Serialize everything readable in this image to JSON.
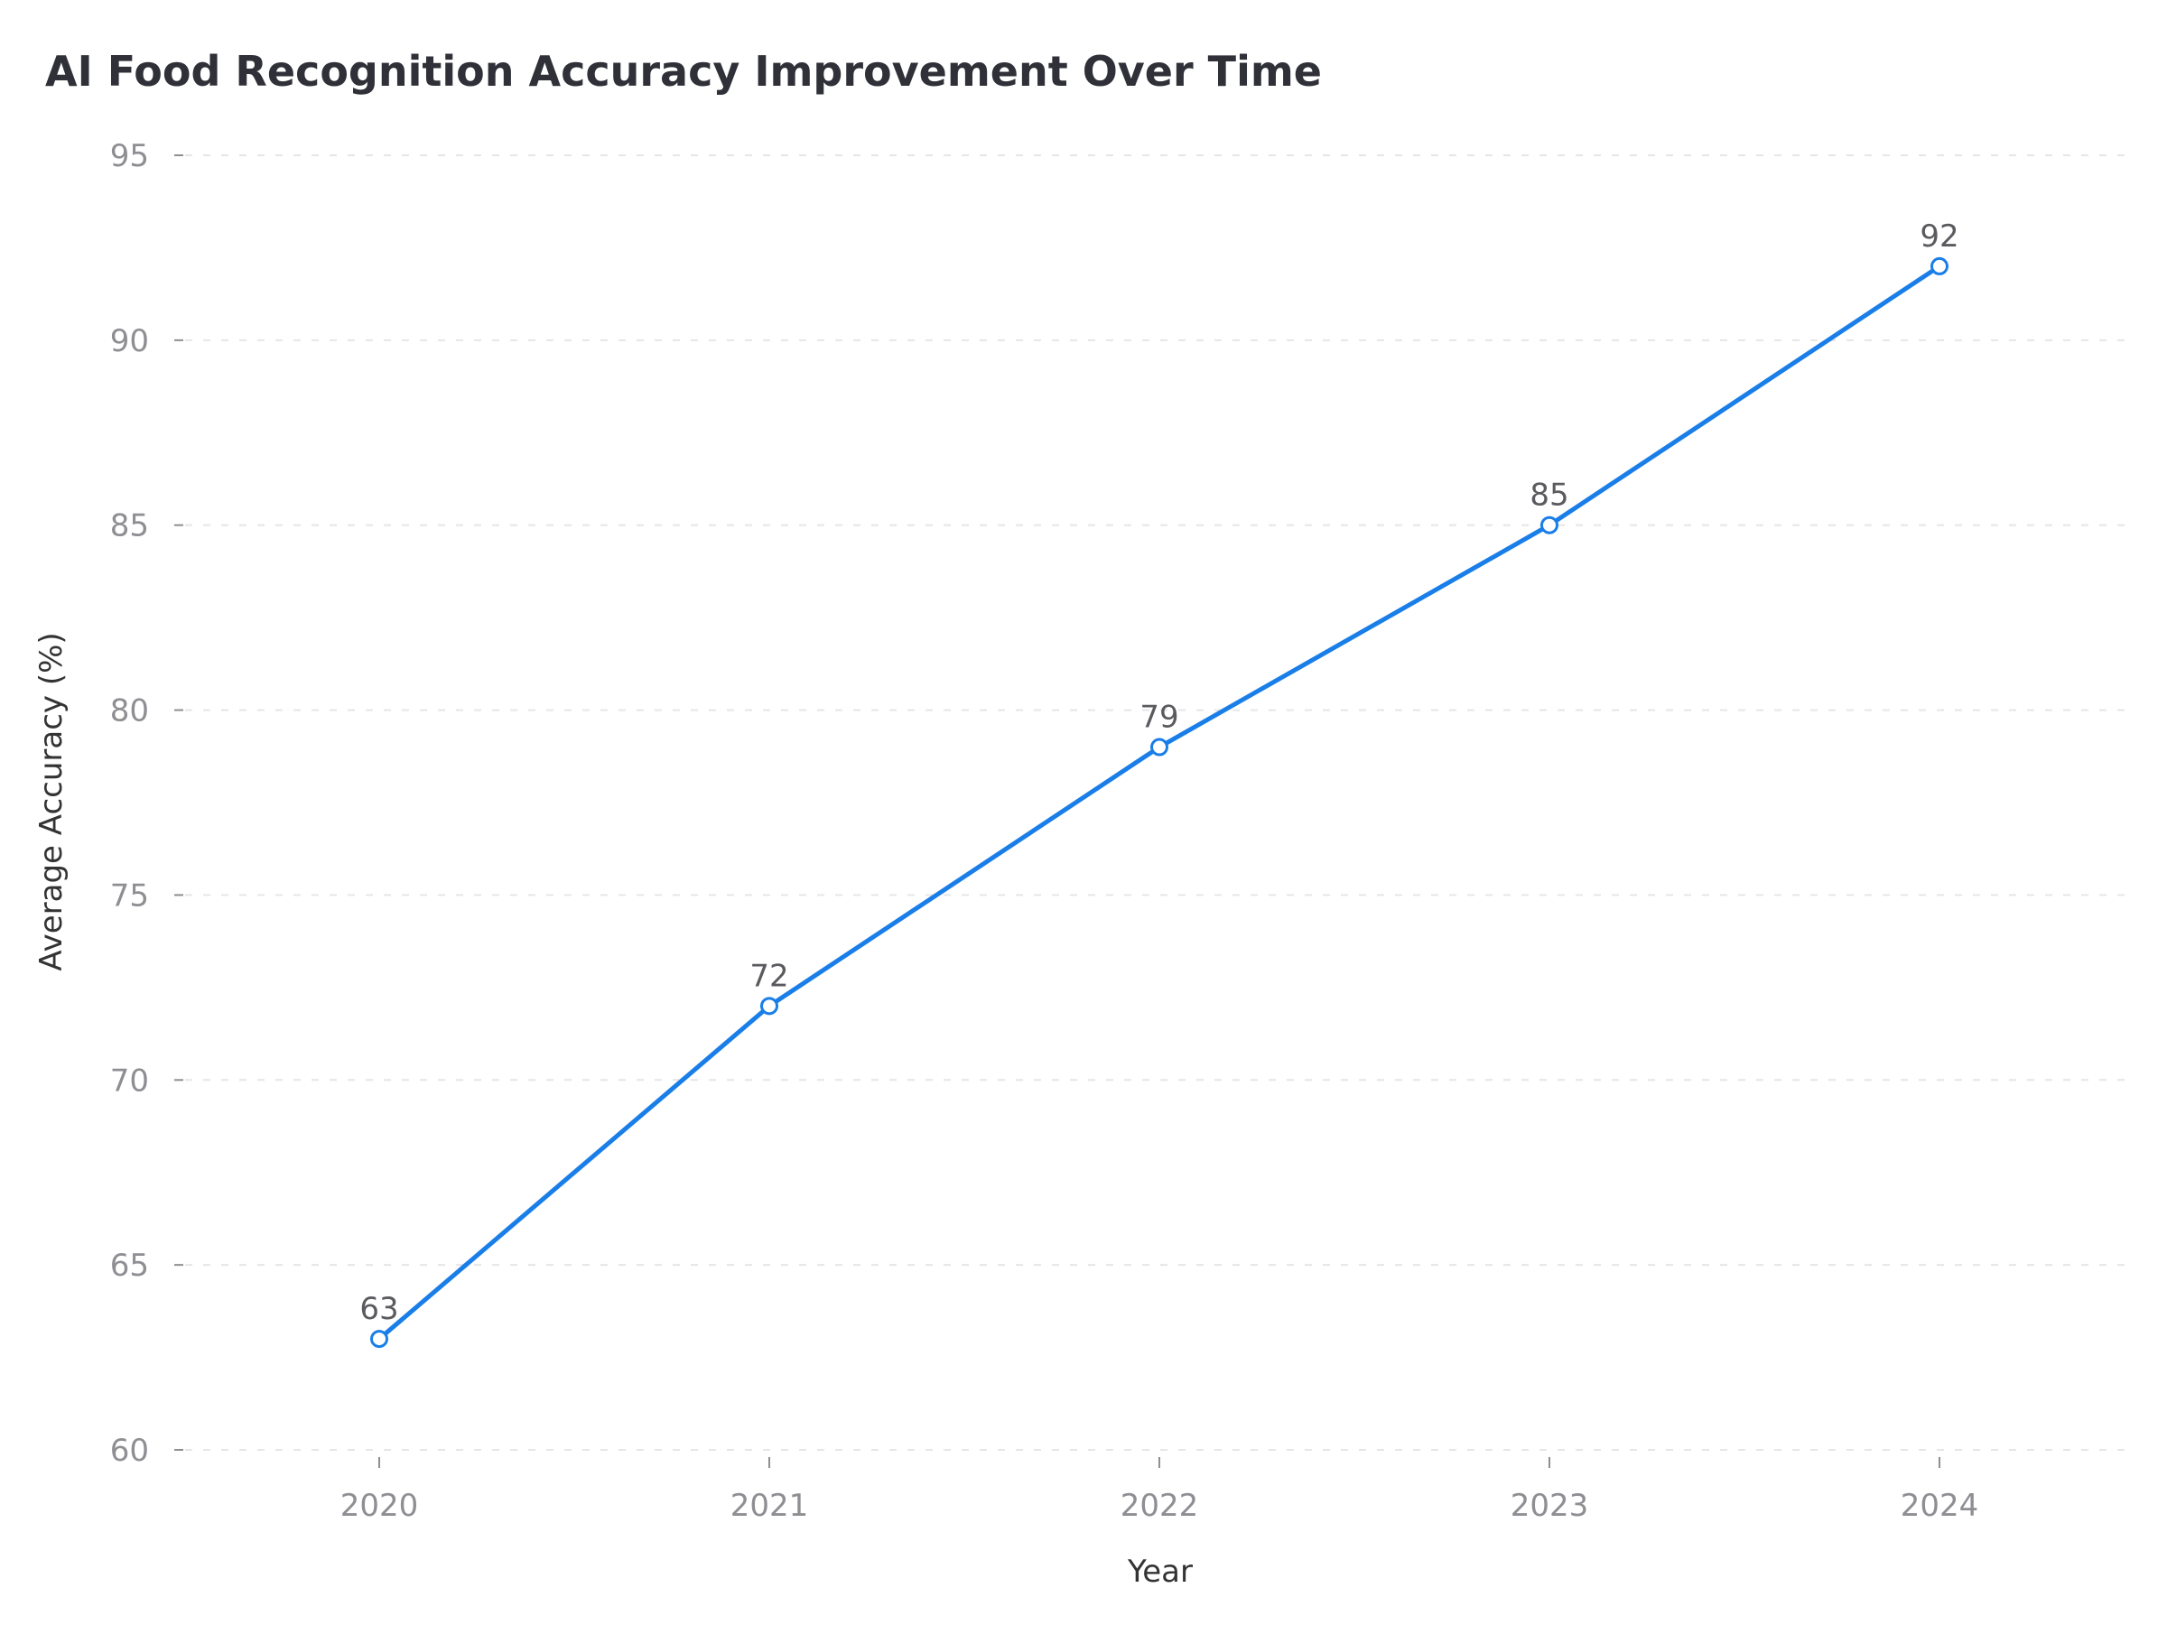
{
  "chart_data": {
    "type": "line",
    "title": "AI Food Recognition Accuracy Improvement Over Time",
    "xlabel": "Year",
    "ylabel": "Average Accuracy (%)",
    "categories": [
      "2020",
      "2021",
      "2022",
      "2023",
      "2024"
    ],
    "series": [
      {
        "values": [
          63,
          72,
          79,
          85,
          92
        ],
        "color": "#1a7ee8"
      }
    ],
    "data_labels": [
      "63",
      "72",
      "79",
      "85",
      "92"
    ],
    "ylim": [
      60,
      95
    ],
    "yticks": [
      60,
      65,
      70,
      75,
      80,
      85,
      90,
      95
    ],
    "ytick_labels": [
      "60",
      "65",
      "70",
      "75",
      "80",
      "85",
      "90",
      "95"
    ],
    "grid": true,
    "grid_axis": "y",
    "legend": "none"
  }
}
